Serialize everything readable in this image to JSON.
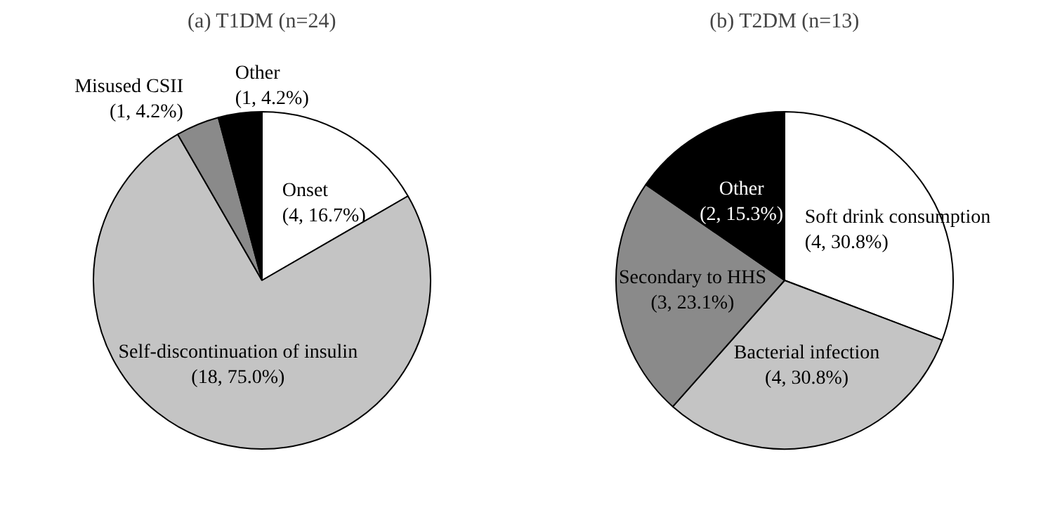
{
  "chart_data": [
    {
      "type": "pie",
      "title": "(a) T1DM (n=24)",
      "categories": [
        "Onset",
        "Self-discontinuation of insulin",
        "Misused CSII",
        "Other"
      ],
      "values": [
        4,
        18,
        1,
        1
      ],
      "value_labels": [
        "(4, 16.7%)",
        "(18, 75.0%)",
        "(1, 4.2%)",
        "(1, 4.2%)"
      ],
      "colors": [
        "#ffffff",
        "#c4c4c4",
        "#8a8a8a",
        "#000000"
      ]
    },
    {
      "type": "pie",
      "title": "(b) T2DM (n=13)",
      "categories": [
        "Soft drink consumption",
        "Bacterial infection",
        "Secondary to HHS",
        "Other"
      ],
      "values": [
        4,
        4,
        3,
        2
      ],
      "value_labels": [
        "(4, 30.8%)",
        "(4, 30.8%)",
        "(3, 23.1%)",
        "(2, 15.3%)"
      ],
      "colors": [
        "#ffffff",
        "#c4c4c4",
        "#8a8a8a",
        "#000000"
      ]
    }
  ]
}
